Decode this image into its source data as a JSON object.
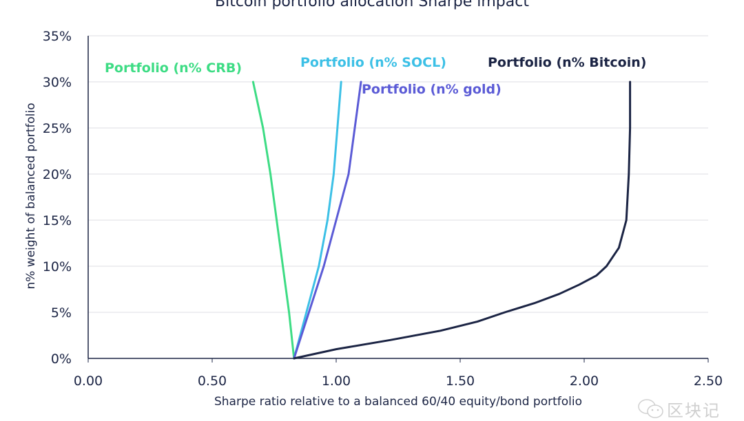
{
  "chart_data": {
    "type": "line",
    "title": "Bitcoin portfolio allocation Sharpe impact",
    "xlabel": "Sharpe ratio relative to a balanced 60/40 equity/bond portfolio",
    "ylabel": "n% weight of balanced portfolio",
    "xlim": [
      0,
      2.5
    ],
    "ylim": [
      0,
      35
    ],
    "x_ticks": [
      "0.00",
      "0.50",
      "1.00",
      "1.50",
      "2.00",
      "2.50"
    ],
    "y_ticks": [
      "0%",
      "5%",
      "10%",
      "15%",
      "20%",
      "25%",
      "30%",
      "35%"
    ],
    "grid": "horizontal",
    "series": [
      {
        "name": "Portfolio (n% CRB)",
        "color": "#3ddc84",
        "points": [
          [
            0.83,
            0
          ],
          [
            0.81,
            5
          ],
          [
            0.785,
            10
          ],
          [
            0.76,
            15
          ],
          [
            0.735,
            20
          ],
          [
            0.705,
            25
          ],
          [
            0.665,
            30
          ]
        ]
      },
      {
        "name": "Portfolio (n% SOCL)",
        "color": "#3cc0e6",
        "points": [
          [
            0.83,
            0
          ],
          [
            0.88,
            5
          ],
          [
            0.93,
            10
          ],
          [
            0.965,
            15
          ],
          [
            0.99,
            20
          ],
          [
            1.005,
            25
          ],
          [
            1.02,
            30
          ]
        ]
      },
      {
        "name": "Portfolio (n% gold)",
        "color": "#5b5bd6",
        "points": [
          [
            0.83,
            0
          ],
          [
            0.89,
            5
          ],
          [
            0.95,
            10
          ],
          [
            1.0,
            15
          ],
          [
            1.05,
            20
          ],
          [
            1.075,
            25
          ],
          [
            1.1,
            30
          ]
        ]
      },
      {
        "name": "Portfolio (n% Bitcoin)",
        "color": "#1b2444",
        "points": [
          [
            0.83,
            0
          ],
          [
            1.0,
            1
          ],
          [
            1.22,
            2
          ],
          [
            1.42,
            3
          ],
          [
            1.57,
            4
          ],
          [
            1.68,
            5
          ],
          [
            1.8,
            6
          ],
          [
            1.9,
            7
          ],
          [
            1.98,
            8
          ],
          [
            2.05,
            9
          ],
          [
            2.09,
            10
          ],
          [
            2.14,
            12
          ],
          [
            2.17,
            15
          ],
          [
            2.18,
            20
          ],
          [
            2.185,
            25
          ],
          [
            2.185,
            30
          ]
        ]
      }
    ]
  },
  "watermark": "区块记"
}
